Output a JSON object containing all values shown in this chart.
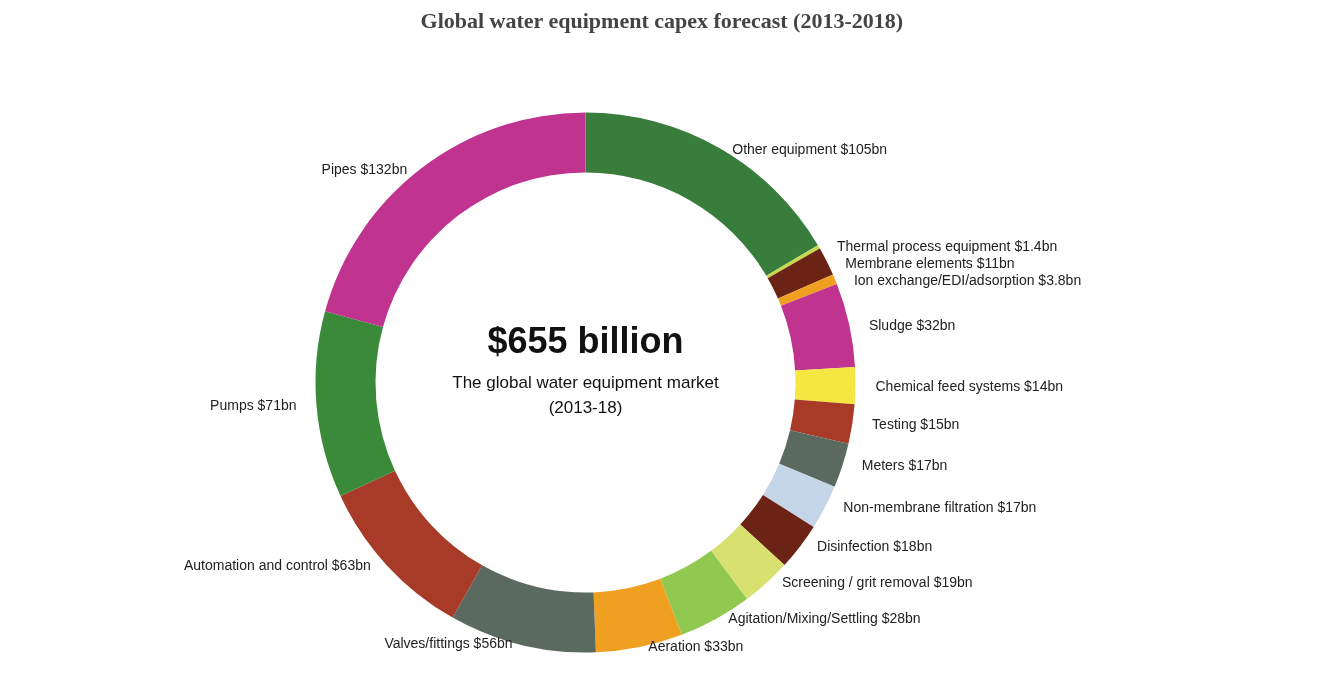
{
  "chart_data": {
    "type": "donut",
    "title": "Global water equipment capex forecast (2013-2018)",
    "categories": [
      "Other equipment",
      "Thermal process equipment",
      "Membrane elements",
      "Ion exchange/EDI/adsorption",
      "Sludge",
      "Chemical feed systems",
      "Testing",
      "Meters",
      "Non-membrane filtration",
      "Disinfection",
      "Screening / grit removal",
      "Agitation/Mixing/Settling",
      "Aeration",
      "Valves/fittings",
      "Automation and control",
      "Pumps",
      "Pipes"
    ],
    "values": [
      105,
      1.4,
      11,
      3.8,
      32,
      14,
      15,
      17,
      17,
      18,
      19,
      28,
      33,
      56,
      63,
      71,
      132
    ],
    "value_labels": [
      "$105bn",
      "$1.4bn",
      "$11bn",
      "$3.8bn",
      "$32bn",
      "$14bn",
      "$15bn",
      "$17bn",
      "$17bn",
      "$18bn",
      "$19bn",
      "$28bn",
      "$33bn",
      "$56bn",
      "$63bn",
      "$71bn",
      "$132bn"
    ],
    "colors": [
      "#387d3c",
      "#c8d84a",
      "#6b2316",
      "#f0a020",
      "#c0338f",
      "#f5e642",
      "#a83a28",
      "#5a6a60",
      "#c5d5e8",
      "#6b2316",
      "#d8e070",
      "#90c850",
      "#f0a020",
      "#5a6a60",
      "#a83a28",
      "#3a8a3a",
      "#c0338f"
    ],
    "annotations": [
      "$655 billion",
      "The global water equipment market",
      "(2013-18)"
    ]
  }
}
